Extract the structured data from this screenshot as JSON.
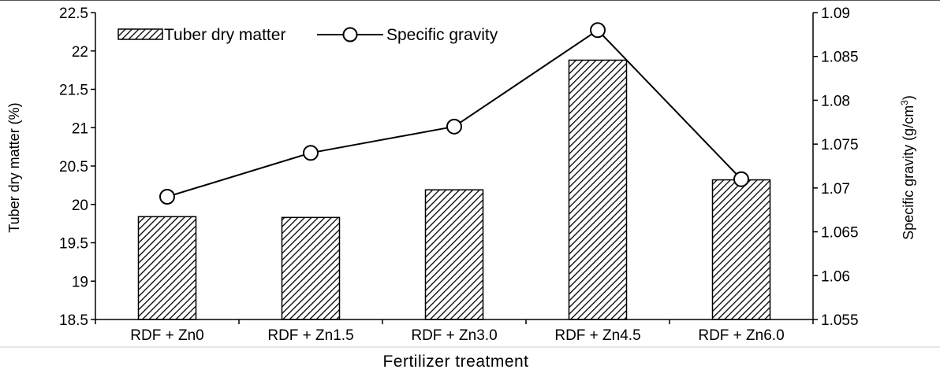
{
  "chart_data": {
    "type": "bar",
    "categories": [
      "RDF + Zn0",
      "RDF + Zn1.5",
      "RDF + Zn3.0",
      "RDF + Zn4.5",
      "RDF + Zn6.0"
    ],
    "series": [
      {
        "name": "Tuber dry matter",
        "type": "bar",
        "axis": "left",
        "pattern": "diagonal-hatch",
        "values": [
          19.84,
          19.83,
          20.19,
          21.88,
          20.32
        ]
      },
      {
        "name": "Specific gravity",
        "type": "line",
        "axis": "right",
        "marker": "open-circle",
        "values": [
          1.069,
          1.074,
          1.077,
          1.088,
          1.071
        ]
      }
    ],
    "xlabel": "Fertilizer treatment",
    "ylabel_left": "Tuber dry matter (%)",
    "ylabel_right_prefix": "Specific gravity (g/cm",
    "ylabel_right_sup": "3",
    "ylabel_right_suffix": ")",
    "ylim_left": [
      18.5,
      22.5
    ],
    "yticks_left": [
      "18.5",
      "19",
      "19.5",
      "20",
      "20.5",
      "21",
      "21.5",
      "22",
      "22.5"
    ],
    "ylim_right": [
      1.055,
      1.09
    ],
    "yticks_right": [
      "1.055",
      "1.06",
      "1.065",
      "1.07",
      "1.075",
      "1.08",
      "1.085",
      "1.09"
    ],
    "legend_position": "top-left",
    "grid": false,
    "colors": {
      "axis": "#000000",
      "bar_fill": "#ffffff",
      "hatch": "#000000",
      "line": "#000000"
    }
  }
}
